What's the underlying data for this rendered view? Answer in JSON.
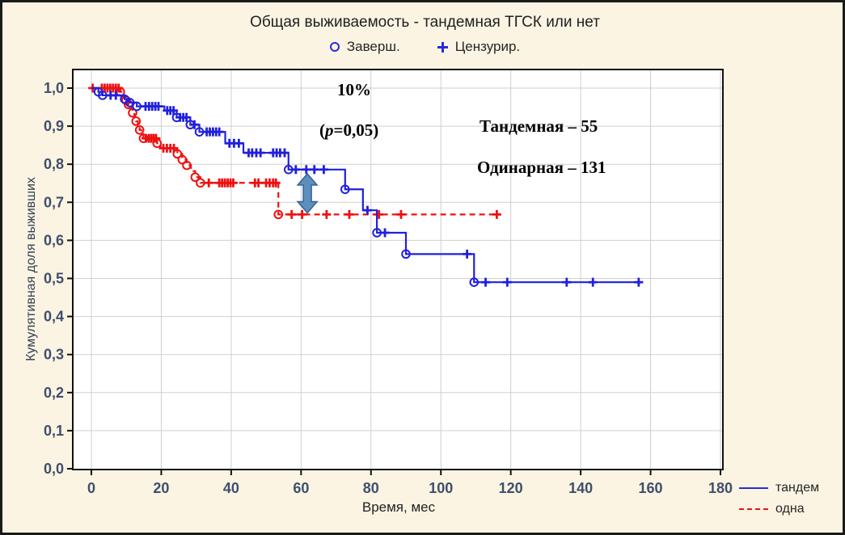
{
  "window": {
    "background_color": "#fbf4e2",
    "border_color": "#1a1a1a",
    "plot_background": "#ffffff",
    "grid_color": "#cfcfcf"
  },
  "header": {
    "title": "Общая выживаемость - тандемная ТГСК или нет",
    "legend": [
      {
        "marker": "open-circle",
        "label": "Заверш."
      },
      {
        "marker": "plus",
        "label": "Цензурир."
      }
    ]
  },
  "annotations": {
    "ten_percent": "10%",
    "p_open": "(",
    "p_var": "p",
    "p_rest": "=0,05)",
    "tandem_count": "Тандемная – 55",
    "single_count": "Одинарная –  131"
  },
  "legend_bottom": [
    {
      "label": "тандем",
      "style": "solid",
      "color": "#2a2ae0"
    },
    {
      "label": "одна",
      "style": "dashed",
      "color": "#ee1111"
    }
  ],
  "chart_data": {
    "type": "line",
    "subtype": "kaplan_meier_step",
    "title": "Общая выживаемость - тандемная ТГСК или нет",
    "xlabel": "Время, мес",
    "ylabel": "Кумулятивная доля выживших",
    "xlim": [
      -5,
      181
    ],
    "ylim": [
      0.0,
      1.05
    ],
    "grid": true,
    "x_ticks": [
      0,
      20,
      40,
      60,
      80,
      100,
      120,
      140,
      160,
      180
    ],
    "x_tick_labels": [
      "0",
      "20",
      "40",
      "60",
      "80",
      "100",
      "120",
      "140",
      "160",
      "180"
    ],
    "y_ticks": [
      0.0,
      0.1,
      0.2,
      0.3,
      0.4,
      0.5,
      0.6,
      0.7,
      0.8,
      0.9,
      1.0
    ],
    "y_tick_labels": [
      "0,0",
      "0,1",
      "0,2",
      "0,3",
      "0,4",
      "0,5",
      "0,6",
      "0,7",
      "0,8",
      "0,9",
      "1,0"
    ],
    "series": [
      {
        "name": "одна",
        "n": 131,
        "color": "#ee1111",
        "style": "dashed",
        "start": [
          0,
          1.0
        ],
        "end_time": 116,
        "drops": [
          [
            8.3,
            0.99
          ],
          [
            9.1,
            0.979
          ],
          [
            9.9,
            0.968
          ],
          [
            10.6,
            0.957
          ],
          [
            11.2,
            0.946
          ],
          [
            11.8,
            0.935
          ],
          [
            12.3,
            0.924
          ],
          [
            12.8,
            0.913
          ],
          [
            13.3,
            0.901
          ],
          [
            13.8,
            0.89
          ],
          [
            14.3,
            0.879
          ],
          [
            14.9,
            0.868
          ],
          [
            18.8,
            0.855
          ],
          [
            19.8,
            0.842
          ],
          [
            24.6,
            0.827
          ],
          [
            26,
            0.812
          ],
          [
            27.3,
            0.797
          ],
          [
            28.5,
            0.782
          ],
          [
            29.7,
            0.766
          ],
          [
            31.2,
            0.751
          ],
          [
            53.5,
            0.668
          ]
        ],
        "events": [
          [
            8.3,
            0.99
          ],
          [
            9.9,
            0.968
          ],
          [
            10.6,
            0.957
          ],
          [
            11.8,
            0.935
          ],
          [
            12.8,
            0.913
          ],
          [
            13.8,
            0.89
          ],
          [
            14.9,
            0.868
          ],
          [
            18.8,
            0.855
          ],
          [
            24.6,
            0.827
          ],
          [
            26,
            0.812
          ],
          [
            27.3,
            0.797
          ],
          [
            29.7,
            0.766
          ],
          [
            31.2,
            0.751
          ],
          [
            53.5,
            0.668
          ]
        ],
        "censored": [
          [
            0.4,
            1
          ],
          [
            3,
            1
          ],
          [
            3.8,
            1
          ],
          [
            4.6,
            1
          ],
          [
            5.4,
            1
          ],
          [
            6.2,
            1
          ],
          [
            7,
            1
          ],
          [
            7.8,
            1
          ],
          [
            15.6,
            0.868
          ],
          [
            16.4,
            0.868
          ],
          [
            17.1,
            0.868
          ],
          [
            17.8,
            0.868
          ],
          [
            18.5,
            0.868
          ],
          [
            20.6,
            0.842
          ],
          [
            21.6,
            0.842
          ],
          [
            22.6,
            0.842
          ],
          [
            23.6,
            0.842
          ],
          [
            33.6,
            0.751
          ],
          [
            36.6,
            0.751
          ],
          [
            37.4,
            0.751
          ],
          [
            38.2,
            0.751
          ],
          [
            39,
            0.751
          ],
          [
            39.8,
            0.751
          ],
          [
            40.6,
            0.751
          ],
          [
            46.8,
            0.751
          ],
          [
            47.8,
            0.751
          ],
          [
            50,
            0.751
          ],
          [
            51,
            0.751
          ],
          [
            52,
            0.751
          ],
          [
            52.8,
            0.751
          ],
          [
            57.3,
            0.668
          ],
          [
            60.3,
            0.668
          ],
          [
            67.3,
            0.668
          ],
          [
            73.8,
            0.668
          ],
          [
            82.3,
            0.668
          ],
          [
            88.6,
            0.668
          ],
          [
            116,
            0.668
          ]
        ]
      },
      {
        "name": "тандем",
        "n": 55,
        "color": "#2020dd",
        "style": "solid",
        "start": [
          0,
          1.0
        ],
        "end_time": 156.6,
        "drops": [
          [
            2,
            0.99
          ],
          [
            3.2,
            0.981
          ],
          [
            9.5,
            0.971
          ],
          [
            11,
            0.962
          ],
          [
            13,
            0.952
          ],
          [
            20.9,
            0.941
          ],
          [
            24.4,
            0.923
          ],
          [
            28.3,
            0.904
          ],
          [
            30.9,
            0.885
          ],
          [
            38.3,
            0.855
          ],
          [
            43.5,
            0.83
          ],
          [
            56.4,
            0.786
          ],
          [
            72.6,
            0.734
          ],
          [
            77.7,
            0.679
          ],
          [
            81.7,
            0.62
          ],
          [
            90,
            0.564
          ],
          [
            109.5,
            0.49
          ]
        ],
        "events": [
          [
            2,
            0.99
          ],
          [
            3.2,
            0.981
          ],
          [
            9.5,
            0.971
          ],
          [
            11,
            0.962
          ],
          [
            13,
            0.952
          ],
          [
            24.4,
            0.923
          ],
          [
            28.3,
            0.904
          ],
          [
            30.9,
            0.885
          ],
          [
            56.4,
            0.786
          ],
          [
            72.6,
            0.734
          ],
          [
            81.7,
            0.62
          ],
          [
            90,
            0.564
          ],
          [
            109.5,
            0.49
          ]
        ],
        "censored": [
          [
            5.5,
            0.981
          ],
          [
            7,
            0.981
          ],
          [
            15.5,
            0.952
          ],
          [
            16.5,
            0.952
          ],
          [
            17.4,
            0.952
          ],
          [
            18.3,
            0.952
          ],
          [
            19.2,
            0.952
          ],
          [
            21.7,
            0.941
          ],
          [
            22.6,
            0.941
          ],
          [
            23.5,
            0.941
          ],
          [
            25.4,
            0.923
          ],
          [
            26.3,
            0.923
          ],
          [
            27.2,
            0.923
          ],
          [
            29.5,
            0.904
          ],
          [
            33,
            0.885
          ],
          [
            33.9,
            0.885
          ],
          [
            34.8,
            0.885
          ],
          [
            35.7,
            0.885
          ],
          [
            36.6,
            0.885
          ],
          [
            39.5,
            0.855
          ],
          [
            40.8,
            0.855
          ],
          [
            42.2,
            0.855
          ],
          [
            45,
            0.83
          ],
          [
            46,
            0.83
          ],
          [
            47.2,
            0.83
          ],
          [
            48.4,
            0.83
          ],
          [
            52,
            0.83
          ],
          [
            53,
            0.83
          ],
          [
            54,
            0.83
          ],
          [
            55.3,
            0.83
          ],
          [
            58.5,
            0.786
          ],
          [
            61.5,
            0.786
          ],
          [
            63.8,
            0.786
          ],
          [
            66.5,
            0.786
          ],
          [
            79,
            0.679
          ],
          [
            84,
            0.62
          ],
          [
            107.5,
            0.564
          ],
          [
            112.8,
            0.49
          ],
          [
            119,
            0.49
          ],
          [
            136,
            0.49
          ],
          [
            143.5,
            0.49
          ],
          [
            156.6,
            0.49
          ]
        ]
      }
    ],
    "arrow_annotation": {
      "x_month": 61.8,
      "from_value": 0.775,
      "to_value": 0.672,
      "fill": "#5d8fbe",
      "stroke": "#33639a",
      "meaning": "10% difference between curves"
    },
    "legend_position": "bottom-right",
    "marker_legend_position": "top-center"
  }
}
